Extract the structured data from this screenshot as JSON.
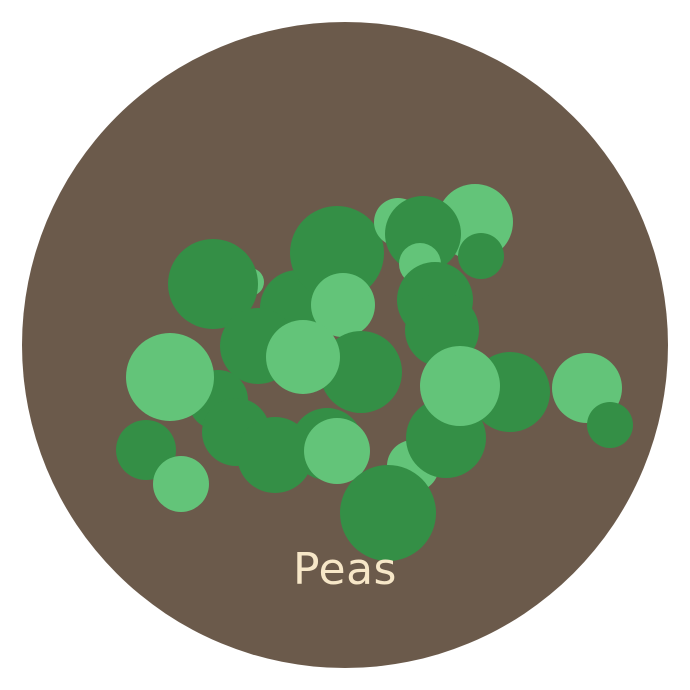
{
  "label": "Peas",
  "colors": {
    "plate": "#6b5a4b",
    "pea_dark": "#348f46",
    "pea_light": "#63c479",
    "label_text": "#f7e7c8"
  },
  "icons": {
    "plate": "plate-icon",
    "pea": "pea-icon"
  }
}
